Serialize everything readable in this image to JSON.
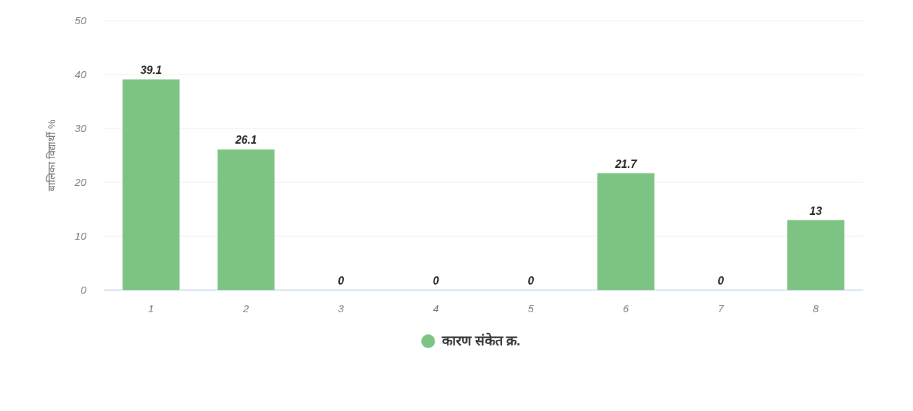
{
  "chart_data": {
    "type": "bar",
    "ylabel": "बालिका विद्यार्थी %",
    "categories": [
      "1",
      "2",
      "3",
      "4",
      "5",
      "6",
      "7",
      "8"
    ],
    "series": [
      {
        "name": "कारण संकेत क्र.",
        "color": "#7dc383",
        "values": [
          39.1,
          26.1,
          0,
          0,
          0,
          21.7,
          0,
          13
        ]
      }
    ],
    "ylim": [
      0,
      50
    ],
    "yticks": [
      0,
      10,
      20,
      30,
      40,
      50
    ],
    "grid": "y",
    "legend": "bottom",
    "data_labels": true
  }
}
